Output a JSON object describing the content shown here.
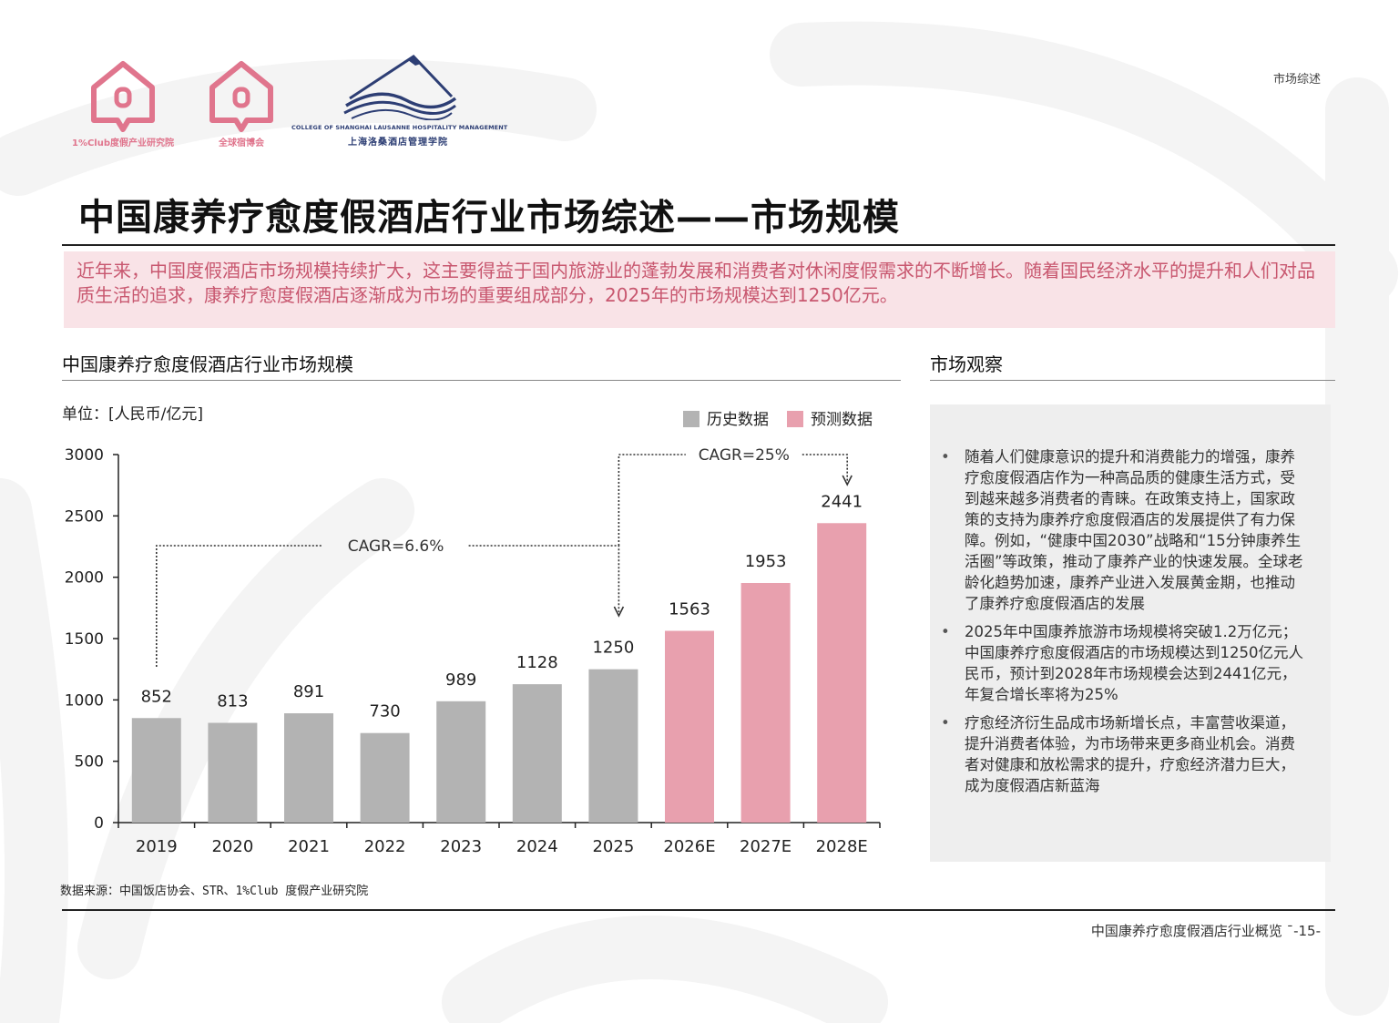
{
  "header": {
    "logo_1_caption": "1%Club度假产业研究院",
    "logo_2_caption": "全球宿博会",
    "logo_3_caption_en": "COLLEGE OF SHANGHAI LAUSANNE HOSPITALITY MANAGEMENT",
    "logo_3_caption_cn": "上海洛桑酒店管理学院",
    "section_tag": "市场综述",
    "brand_pink": "#e0758d",
    "brand_navy": "#2d3e74"
  },
  "page_title": "中国康养疗愈度假酒店行业市场综述——市场规模",
  "intro": "近年来，中国度假酒店市场规模持续扩大，这主要得益于国内旅游业的蓬勃发展和消费者对休闲度假需求的不断增长。随着国民经济水平的提升和人们对品质生活的追求，康养疗愈度假酒店逐渐成为市场的重要组成部分，2025年的市场规模达到1250亿元。",
  "chart_section": {
    "heading": "中国康养疗愈度假酒店行业市场规模",
    "unit": "单位：[人民币/亿元]"
  },
  "chart_data": {
    "type": "bar",
    "categories": [
      "2019",
      "2020",
      "2021",
      "2022",
      "2023",
      "2024",
      "2025",
      "2026E",
      "2027E",
      "2028E"
    ],
    "series": [
      {
        "name": "历史数据",
        "color": "#b3b3b3",
        "values": [
          852,
          813,
          891,
          730,
          989,
          1128,
          1250,
          null,
          null,
          null
        ]
      },
      {
        "name": "预测数据",
        "color": "#e8a0ae",
        "values": [
          null,
          null,
          null,
          null,
          null,
          null,
          null,
          1563,
          1953,
          2441
        ]
      }
    ],
    "ylim": [
      0,
      3000
    ],
    "yticks": [
      0,
      500,
      1000,
      1500,
      2000,
      2500,
      3000
    ],
    "data_labels": true,
    "grid": false,
    "legend_position": "top-right",
    "annotations": [
      {
        "text": "CAGR=6.6%",
        "from": "2019",
        "to": "2025"
      },
      {
        "text": "CAGR=25%",
        "from": "2025",
        "to": "2028E"
      }
    ]
  },
  "observation": {
    "heading": "市场观察",
    "items": [
      "随着人们健康意识的提升和消费能力的增强，康养疗愈度假酒店作为一种高品质的健康生活方式，受到越来越多消费者的青睐。在政策支持上，国家政策的支持为康养疗愈度假酒店的发展提供了有力保障。例如，“健康中国2030”战略和“15分钟康养生活圈”等政策，推动了康养产业的快速发展。全球老龄化趋势加速，康养产业进入发展黄金期，也推动了康养疗愈度假酒店的发展",
      "2025年中国康养旅游市场规模将突破1.2万亿元；中国康养疗愈度假酒店的市场规模达到1250亿元人民币，预计到2028年市场规模会达到2441亿元，年复合增长率将为25%",
      "疗愈经济衍生品成市场新增长点，丰富营收渠道，提升消费者体验，为市场带来更多商业机会。消费者对健康和放松需求的提升，疗愈经济潜力巨大，成为度假酒店新蓝海"
    ],
    "bullet": "•"
  },
  "source_note": "数据来源：中国饭店协会、STR、1%Club 度假产业研究院",
  "footer": {
    "text": "中国康养疗愈度假酒店行业概览 ˉ-15-"
  }
}
